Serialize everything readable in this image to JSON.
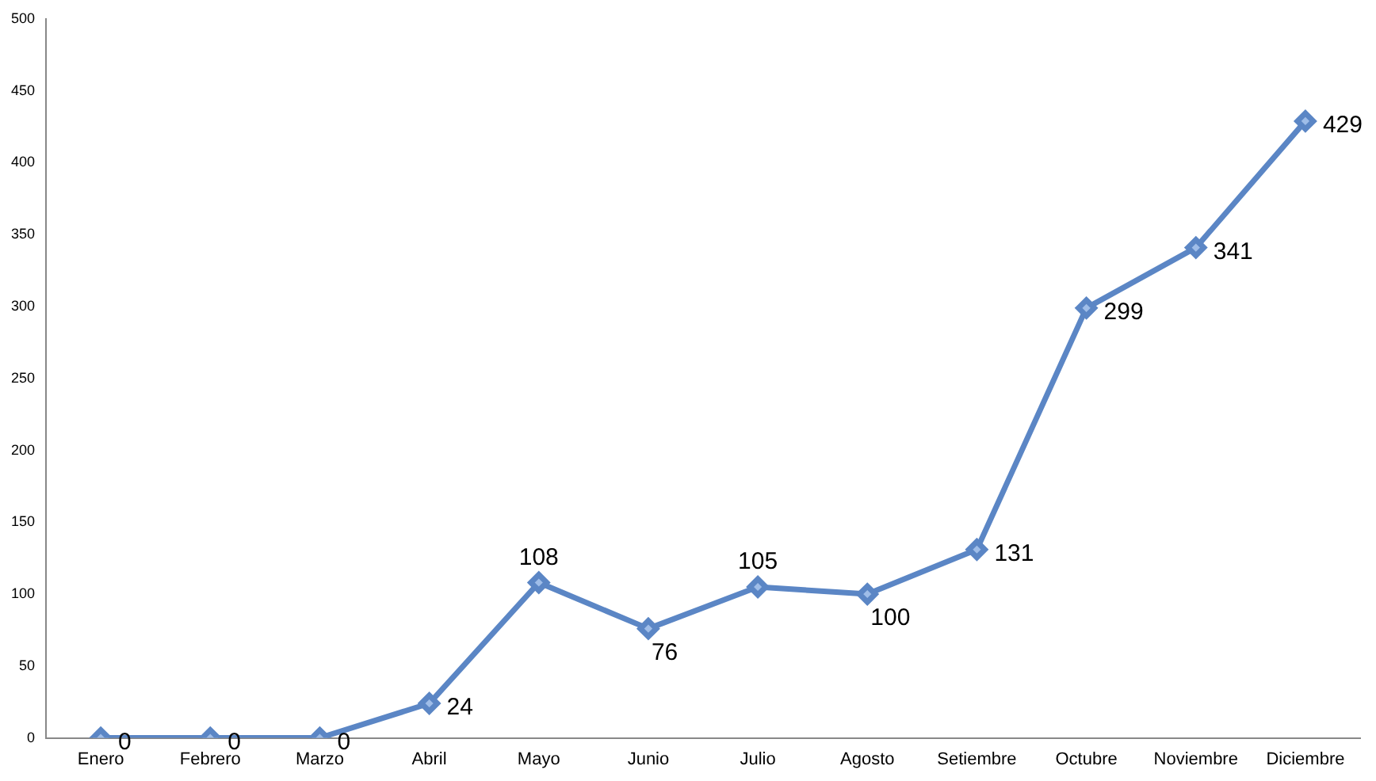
{
  "chart_data": {
    "type": "line",
    "categories": [
      "Enero",
      "Febrero",
      "Marzo",
      "Abril",
      "Mayo",
      "Junio",
      "Julio",
      "Agosto",
      "Setiembre",
      "Octubre",
      "Noviembre",
      "Diciembre"
    ],
    "series": [
      {
        "color": "#5b86c5",
        "values": [
          0,
          0,
          0,
          24,
          108,
          76,
          105,
          100,
          131,
          299,
          341,
          429
        ]
      }
    ],
    "ylim": [
      0,
      500
    ],
    "yticks": [
      0,
      50,
      100,
      150,
      200,
      250,
      300,
      350,
      400,
      450,
      500
    ],
    "grid": false,
    "legend": false,
    "marker": "diamond",
    "line_style": "solid",
    "data_labels": true
  }
}
